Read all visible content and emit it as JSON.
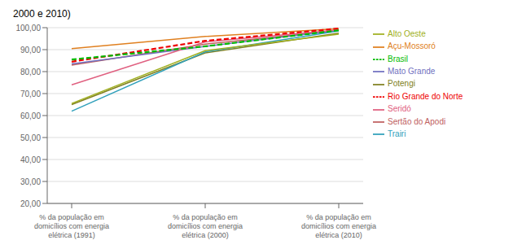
{
  "chart_data": {
    "type": "line",
    "title": "2000 e 2010)",
    "categories": [
      "% da população em\ndomicílios com energia\nelétrica (1991)",
      "% da população em\ndomicílios com energia\nelétrica (2000)",
      "% da população em\ndomicílios com energia\nelétrica (2010)"
    ],
    "ylim": [
      20,
      100
    ],
    "yticks": [
      {
        "value": 20,
        "label": "20,00"
      },
      {
        "value": 30,
        "label": "30,00"
      },
      {
        "value": 40,
        "label": "40,00"
      },
      {
        "value": 50,
        "label": "50,00"
      },
      {
        "value": 60,
        "label": "60,00"
      },
      {
        "value": 70,
        "label": "70,00"
      },
      {
        "value": 80,
        "label": "80,00"
      },
      {
        "value": 90,
        "label": "90,00"
      },
      {
        "value": 100,
        "label": "100,00"
      }
    ],
    "grid": "y",
    "legend": "right",
    "series": [
      {
        "name": "Sertão do Apodi",
        "color": "#C06060",
        "line_style": "solid",
        "values": [
          83.0,
          92.5,
          98.7
        ]
      },
      {
        "name": "Potengi",
        "color": "#808020",
        "line_style": "solid",
        "values": [
          65.0,
          88.5,
          97.5
        ]
      },
      {
        "name": "Mato Grande",
        "color": "#7070C0",
        "line_style": "solid",
        "values": [
          83.5,
          91.5,
          98.8
        ]
      },
      {
        "name": "Trairi",
        "color": "#30A0BB",
        "line_style": "solid",
        "values": [
          62.0,
          89.0,
          98.5
        ]
      },
      {
        "name": "Açu-Mossoró",
        "color": "#E08020",
        "line_style": "solid",
        "values": [
          90.5,
          96.0,
          99.5
        ]
      },
      {
        "name": "Seridó",
        "color": "#E06080",
        "line_style": "solid",
        "values": [
          74.0,
          93.5,
          99.0
        ]
      },
      {
        "name": "Alto Oeste",
        "color": "#A0B020",
        "line_style": "solid",
        "values": [
          65.5,
          89.5,
          97.0
        ]
      },
      {
        "name": "Rio Grande do Norte",
        "color": "#EE0000",
        "line_style": "dashed",
        "values": [
          84.5,
          94.0,
          99.6
        ]
      },
      {
        "name": "Brasil",
        "color": "#00BB00",
        "line_style": "dashed",
        "values": [
          85.5,
          91.5,
          98.8
        ]
      }
    ]
  }
}
